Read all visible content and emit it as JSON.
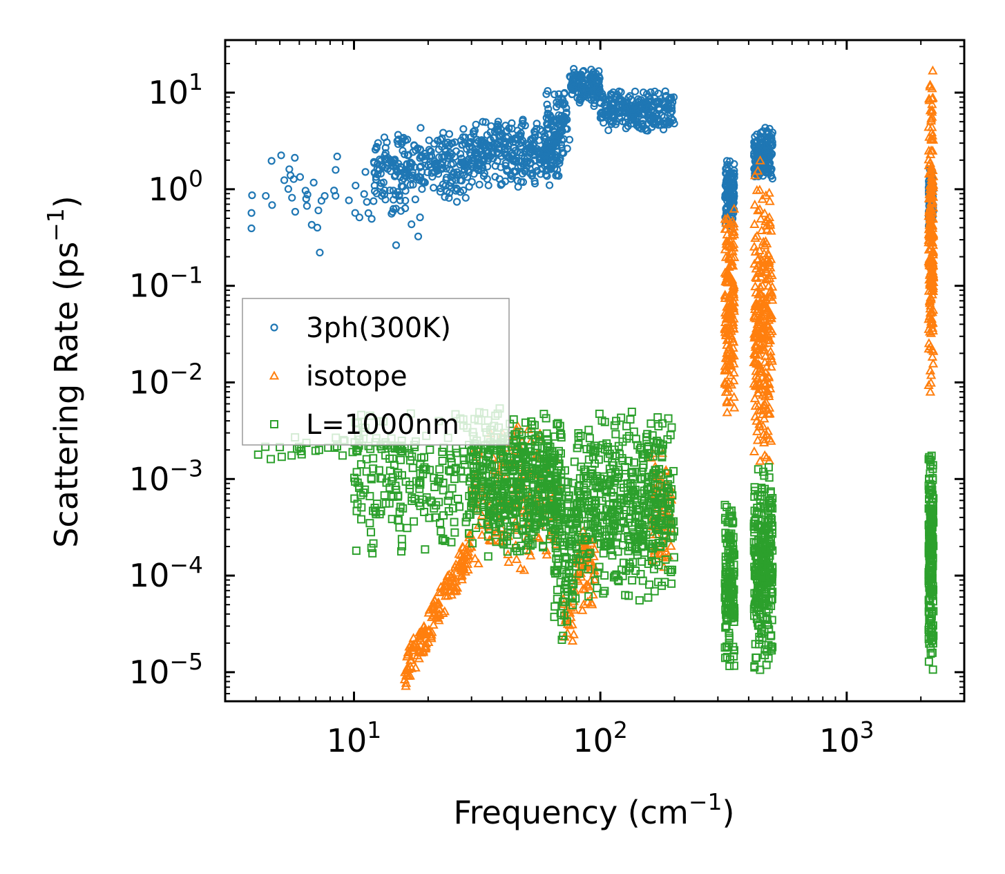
{
  "chart_data": {
    "type": "scatter",
    "title": "",
    "xlabel": "Frequency (cm⁻¹)",
    "ylabel": "Scattering Rate (ps⁻¹)",
    "xlabel_parts": {
      "base": "Frequency (cm",
      "exp": "−1",
      "tail": ")"
    },
    "ylabel_parts": {
      "base": "Scattering Rate (ps",
      "exp": "−1",
      "tail": ")"
    },
    "xscale": "log",
    "yscale": "log",
    "xlim": [
      3,
      3000
    ],
    "ylim": [
      5e-06,
      35
    ],
    "xticks": [
      {
        "value": 10,
        "base": "10",
        "exp": "1"
      },
      {
        "value": 100,
        "base": "10",
        "exp": "2"
      },
      {
        "value": 1000,
        "base": "10",
        "exp": "3"
      }
    ],
    "yticks": [
      {
        "value": 1e-05,
        "base": "10",
        "exp": "−5"
      },
      {
        "value": 0.0001,
        "base": "10",
        "exp": "−4"
      },
      {
        "value": 0.001,
        "base": "10",
        "exp": "−3"
      },
      {
        "value": 0.01,
        "base": "10",
        "exp": "−2"
      },
      {
        "value": 0.1,
        "base": "10",
        "exp": "−1"
      },
      {
        "value": 1,
        "base": "10",
        "exp": "0"
      },
      {
        "value": 10,
        "base": "10",
        "exp": "1"
      }
    ],
    "legend_position": "center-left",
    "series": [
      {
        "name": "3ph(300K)",
        "marker": "circle",
        "color": "#1f77b4",
        "bands": [
          {
            "x": [
              3.8,
              20
            ],
            "y": [
              0.15,
              4.5
            ],
            "n": 60
          },
          {
            "x": [
              12,
              30
            ],
            "y": [
              0.7,
              4.5
            ],
            "n": 260
          },
          {
            "x": [
              30,
              70
            ],
            "y": [
              1.0,
              6.0
            ],
            "n": 320
          },
          {
            "x": [
              60,
              75
            ],
            "y": [
              2.0,
              12.0
            ],
            "n": 80
          },
          {
            "x": [
              75,
              100
            ],
            "y": [
              7.0,
              18.0
            ],
            "n": 140
          },
          {
            "x": [
              100,
              200
            ],
            "y": [
              3.8,
              11.0
            ],
            "n": 260
          },
          {
            "x": [
              320,
              350
            ],
            "y": [
              0.35,
              2.2
            ],
            "n": 120
          },
          {
            "x": [
              420,
              500
            ],
            "y": [
              1.2,
              4.6
            ],
            "n": 160
          },
          {
            "x": [
              2150,
              2250
            ],
            "y": [
              0.35,
              1.8
            ],
            "n": 90
          }
        ]
      },
      {
        "name": "isotope",
        "marker": "triangle",
        "color": "#ff7f0e",
        "bands": [
          {
            "x": [
              16,
              30
            ],
            "y": [
              1e-05,
              0.0002
            ],
            "n": 170,
            "trend": "rising"
          },
          {
            "x": [
              30,
              68
            ],
            "y": [
              8e-05,
              0.0045
            ],
            "n": 150
          },
          {
            "x": [
              70,
              80
            ],
            "y": [
              2e-05,
              8e-05
            ],
            "n": 20
          },
          {
            "x": [
              80,
              95
            ],
            "y": [
              4e-05,
              0.0004
            ],
            "n": 60
          },
          {
            "x": [
              160,
              195
            ],
            "y": [
              0.0001,
              0.0025
            ],
            "n": 70
          },
          {
            "x": [
              320,
              350
            ],
            "y": [
              0.004,
              0.8
            ],
            "n": 180
          },
          {
            "x": [
              420,
              500
            ],
            "y": [
              0.001,
              2.2
            ],
            "n": 260
          },
          {
            "x": [
              2150,
              2250
            ],
            "y": [
              0.006,
              18.0
            ],
            "n": 220
          }
        ]
      },
      {
        "name": "L=1000nm",
        "marker": "square",
        "color": "#2ca02c",
        "bands": [
          {
            "x": [
              3.8,
              18
            ],
            "y": [
              0.0015,
              0.003
            ],
            "n": 40
          },
          {
            "x": [
              10,
              30
            ],
            "y": [
              0.00014,
              0.006
            ],
            "n": 200
          },
          {
            "x": [
              30,
              70
            ],
            "y": [
              0.00015,
              0.006
            ],
            "n": 500
          },
          {
            "x": [
              65,
              80
            ],
            "y": [
              2e-05,
              0.0025
            ],
            "n": 120
          },
          {
            "x": [
              80,
              200
            ],
            "y": [
              5e-05,
              0.006
            ],
            "n": 500
          },
          {
            "x": [
              320,
              350
            ],
            "y": [
              1e-05,
              0.0008
            ],
            "n": 160
          },
          {
            "x": [
              420,
              500
            ],
            "y": [
              1e-05,
              0.0015
            ],
            "n": 280
          },
          {
            "x": [
              2150,
              2250
            ],
            "y": [
              1e-05,
              0.0022
            ],
            "n": 200
          }
        ]
      }
    ]
  }
}
